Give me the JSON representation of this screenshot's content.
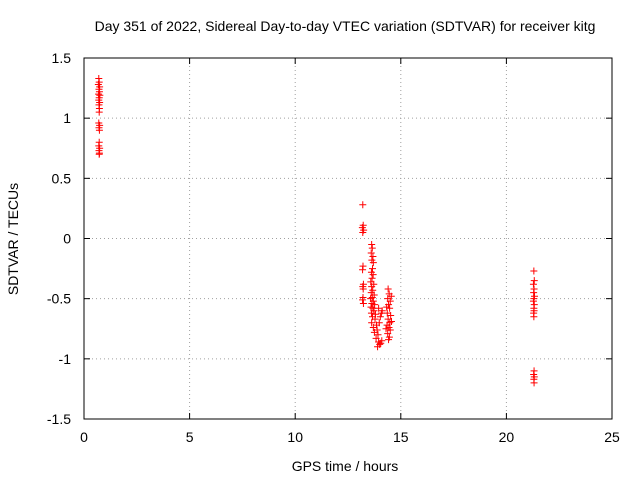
{
  "chart_data": {
    "type": "scatter",
    "title": "Day 351 of 2022, Sidereal Day-to-day VTEC variation (SDTVAR) for receiver kitg",
    "xlabel": "GPS time / hours",
    "ylabel": "SDTVAR / TECUs",
    "xlim": [
      0,
      25
    ],
    "ylim": [
      -1.5,
      1.5
    ],
    "xticks": [
      0,
      5,
      10,
      15,
      20,
      25
    ],
    "yticks": [
      -1.5,
      -1,
      -0.5,
      0,
      0.5,
      1,
      1.5
    ],
    "xtick_labels": [
      "0",
      "5",
      "10",
      "15",
      "20",
      "25"
    ],
    "ytick_labels": [
      "-1.5",
      "-1",
      "-0.5",
      "0",
      "0.5",
      "1",
      "1.5"
    ],
    "grid": true,
    "marker": "+",
    "color": "#ff0000",
    "series": [
      {
        "name": "SDTVAR",
        "points": [
          [
            0.7,
            1.33
          ],
          [
            0.72,
            1.3
          ],
          [
            0.68,
            1.28
          ],
          [
            0.74,
            1.26
          ],
          [
            0.71,
            1.24
          ],
          [
            0.73,
            1.22
          ],
          [
            0.69,
            1.2
          ],
          [
            0.75,
            1.19
          ],
          [
            0.72,
            1.17
          ],
          [
            0.7,
            1.15
          ],
          [
            0.74,
            1.13
          ],
          [
            0.71,
            1.11
          ],
          [
            0.73,
            1.08
          ],
          [
            0.72,
            1.05
          ],
          [
            0.7,
            0.96
          ],
          [
            0.74,
            0.94
          ],
          [
            0.71,
            0.92
          ],
          [
            0.73,
            0.9
          ],
          [
            0.72,
            0.8
          ],
          [
            0.7,
            0.77
          ],
          [
            0.74,
            0.75
          ],
          [
            0.71,
            0.73
          ],
          [
            0.73,
            0.71
          ],
          [
            0.72,
            0.7
          ],
          [
            13.2,
            0.28
          ],
          [
            13.22,
            0.11
          ],
          [
            13.18,
            0.09
          ],
          [
            13.24,
            0.07
          ],
          [
            13.2,
            0.05
          ],
          [
            13.21,
            -0.23
          ],
          [
            13.19,
            -0.26
          ],
          [
            13.23,
            -0.38
          ],
          [
            13.2,
            -0.4
          ],
          [
            13.22,
            -0.42
          ],
          [
            13.21,
            -0.49
          ],
          [
            13.19,
            -0.51
          ],
          [
            13.23,
            -0.54
          ],
          [
            13.62,
            -0.05
          ],
          [
            13.65,
            -0.08
          ],
          [
            13.6,
            -0.12
          ],
          [
            13.68,
            -0.15
          ],
          [
            13.63,
            -0.18
          ],
          [
            13.7,
            -0.2
          ],
          [
            13.66,
            -0.25
          ],
          [
            13.61,
            -0.28
          ],
          [
            13.69,
            -0.3
          ],
          [
            13.64,
            -0.33
          ],
          [
            13.58,
            -0.36
          ],
          [
            13.72,
            -0.38
          ],
          [
            13.62,
            -0.4
          ],
          [
            13.67,
            -0.43
          ],
          [
            13.6,
            -0.45
          ],
          [
            13.74,
            -0.47
          ],
          [
            13.65,
            -0.49
          ],
          [
            13.57,
            -0.5
          ],
          [
            13.7,
            -0.52
          ],
          [
            13.63,
            -0.54
          ],
          [
            13.76,
            -0.55
          ],
          [
            13.59,
            -0.57
          ],
          [
            13.68,
            -0.58
          ],
          [
            13.73,
            -0.6
          ],
          [
            13.61,
            -0.62
          ],
          [
            13.8,
            -0.63
          ],
          [
            13.66,
            -0.65
          ],
          [
            13.78,
            -0.67
          ],
          [
            13.62,
            -0.7
          ],
          [
            13.85,
            -0.72
          ],
          [
            13.7,
            -0.74
          ],
          [
            13.88,
            -0.76
          ],
          [
            13.75,
            -0.78
          ],
          [
            13.92,
            -0.8
          ],
          [
            13.83,
            -0.83
          ],
          [
            13.95,
            -0.86
          ],
          [
            14.0,
            -0.88
          ],
          [
            13.9,
            -0.9
          ],
          [
            14.05,
            -0.87
          ],
          [
            14.1,
            -0.85
          ],
          [
            13.98,
            -0.7
          ],
          [
            14.03,
            -0.65
          ],
          [
            14.08,
            -0.62
          ],
          [
            13.95,
            -0.58
          ],
          [
            14.12,
            -0.6
          ],
          [
            14.4,
            -0.42
          ],
          [
            14.45,
            -0.46
          ],
          [
            14.38,
            -0.5
          ],
          [
            14.5,
            -0.52
          ],
          [
            14.42,
            -0.55
          ],
          [
            14.47,
            -0.58
          ],
          [
            14.36,
            -0.62
          ],
          [
            14.52,
            -0.64
          ],
          [
            14.4,
            -0.67
          ],
          [
            14.48,
            -0.7
          ],
          [
            14.35,
            -0.72
          ],
          [
            14.44,
            -0.74
          ],
          [
            14.5,
            -0.76
          ],
          [
            14.38,
            -0.79
          ],
          [
            14.46,
            -0.82
          ],
          [
            14.42,
            -0.84
          ],
          [
            14.55,
            -0.48
          ],
          [
            14.33,
            -0.57
          ],
          [
            14.56,
            -0.69
          ],
          [
            14.3,
            -0.75
          ],
          [
            21.3,
            -0.27
          ],
          [
            21.32,
            -0.35
          ],
          [
            21.28,
            -0.38
          ],
          [
            21.31,
            -0.42
          ],
          [
            21.29,
            -0.45
          ],
          [
            21.33,
            -0.48
          ],
          [
            21.3,
            -0.5
          ],
          [
            21.28,
            -0.52
          ],
          [
            21.32,
            -0.55
          ],
          [
            21.3,
            -0.58
          ],
          [
            21.31,
            -0.6
          ],
          [
            21.29,
            -0.62
          ],
          [
            21.3,
            -0.65
          ],
          [
            21.31,
            -1.1
          ],
          [
            21.29,
            -1.13
          ],
          [
            21.32,
            -1.15
          ],
          [
            21.3,
            -1.17
          ],
          [
            21.31,
            -1.2
          ]
        ]
      }
    ]
  }
}
